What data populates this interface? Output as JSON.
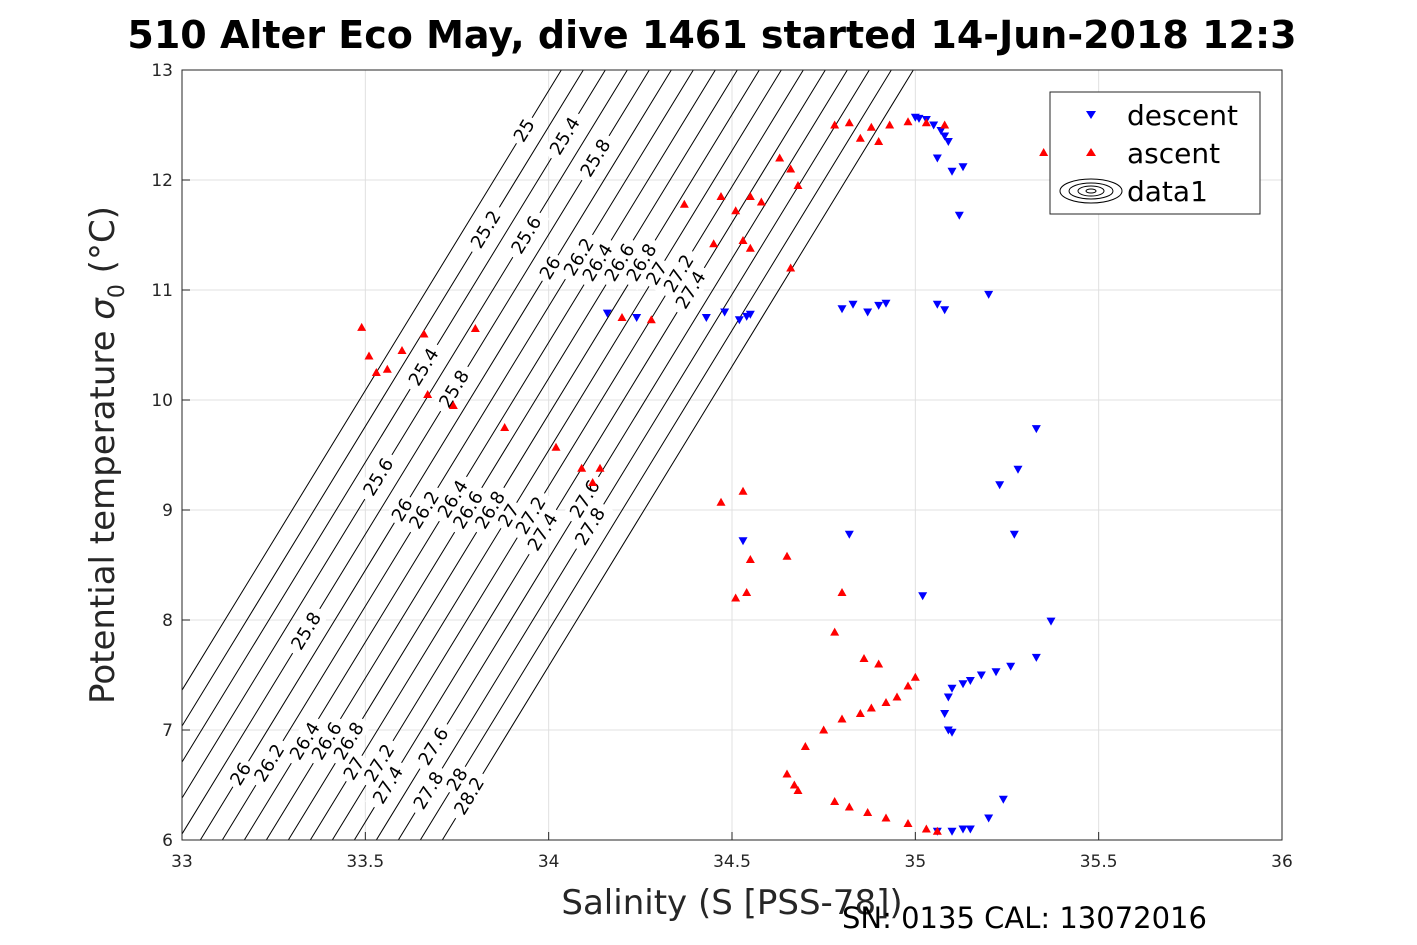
{
  "chart_data": {
    "type": "scatter",
    "title": "510 Alter Eco May, dive 1461 started 14-Jun-2018 12:3",
    "xlabel": "Salinity (S [PSS-78])",
    "ylabel_main": "Potential temperature ",
    "ylabel_sigma": "σ",
    "ylabel_sub": "0",
    "ylabel_unit": " (°C)",
    "footer": "SN: 0135  CAL: 13072016",
    "xlim": [
      33,
      36
    ],
    "ylim": [
      6,
      13
    ],
    "xticks": [
      "33",
      "33.5",
      "34",
      "34.5",
      "35",
      "35.5",
      "36"
    ],
    "yticks": [
      "6",
      "7",
      "8",
      "9",
      "10",
      "11",
      "12",
      "13"
    ],
    "grid": true,
    "legend_position": "top-right",
    "legend": [
      "descent",
      "ascent",
      "data1"
    ],
    "colors": {
      "descent": "#0000ff",
      "ascent": "#ff0000",
      "contour": "#000000",
      "grid": "#e0e0e0"
    },
    "density_contours": {
      "levels": [
        25,
        25.2,
        25.4,
        25.6,
        25.8,
        26,
        26.2,
        26.4,
        26.6,
        26.8,
        27,
        27.2,
        27.4,
        27.6,
        27.8,
        28,
        28.2
      ],
      "labels": [
        {
          "text": "25",
          "level": 25,
          "y": 12.45
        },
        {
          "text": "25.2",
          "level": 25.2,
          "y": 11.55
        },
        {
          "text": "25.4",
          "level": 25.4,
          "y": 12.4
        },
        {
          "text": "25.4",
          "level": 25.4,
          "y": 10.3
        },
        {
          "text": "25.6",
          "level": 25.6,
          "y": 11.5
        },
        {
          "text": "25.6",
          "level": 25.6,
          "y": 9.3
        },
        {
          "text": "25.8",
          "level": 25.8,
          "y": 12.2
        },
        {
          "text": "25.8",
          "level": 25.8,
          "y": 10.1
        },
        {
          "text": "25.8",
          "level": 25.8,
          "y": 7.9
        },
        {
          "text": "26",
          "level": 26,
          "y": 11.2
        },
        {
          "text": "26",
          "level": 26,
          "y": 9.0
        },
        {
          "text": "26",
          "level": 26,
          "y": 6.6
        },
        {
          "text": "26.2",
          "level": 26.2,
          "y": 11.3
        },
        {
          "text": "26.2",
          "level": 26.2,
          "y": 9.0
        },
        {
          "text": "26.2",
          "level": 26.2,
          "y": 6.7
        },
        {
          "text": "26.4",
          "level": 26.4,
          "y": 11.25
        },
        {
          "text": "26.4",
          "level": 26.4,
          "y": 9.1
        },
        {
          "text": "26.4",
          "level": 26.4,
          "y": 6.9
        },
        {
          "text": "26.6",
          "level": 26.6,
          "y": 11.25
        },
        {
          "text": "26.6",
          "level": 26.6,
          "y": 9.0
        },
        {
          "text": "26.6",
          "level": 26.6,
          "y": 6.9
        },
        {
          "text": "26.8",
          "level": 26.8,
          "y": 11.25
        },
        {
          "text": "26.8",
          "level": 26.8,
          "y": 9.0
        },
        {
          "text": "26.8",
          "level": 26.8,
          "y": 6.9
        },
        {
          "text": "27",
          "level": 27,
          "y": 11.15
        },
        {
          "text": "27",
          "level": 27,
          "y": 8.95
        },
        {
          "text": "27",
          "level": 27,
          "y": 6.65
        },
        {
          "text": "27.2",
          "level": 27.2,
          "y": 11.15
        },
        {
          "text": "27.2",
          "level": 27.2,
          "y": 8.95
        },
        {
          "text": "27.2",
          "level": 27.2,
          "y": 6.7
        },
        {
          "text": "27.4",
          "level": 27.4,
          "y": 11.0
        },
        {
          "text": "27.4",
          "level": 27.4,
          "y": 8.8
        },
        {
          "text": "27.4",
          "level": 27.4,
          "y": 6.5
        },
        {
          "text": "27.6",
          "level": 27.6,
          "y": 9.1
        },
        {
          "text": "27.6",
          "level": 27.6,
          "y": 6.85
        },
        {
          "text": "27.8",
          "level": 27.8,
          "y": 8.85
        },
        {
          "text": "27.8",
          "level": 27.8,
          "y": 6.45
        },
        {
          "text": "28",
          "level": 28,
          "y": 6.55
        },
        {
          "text": "28.2",
          "level": 28.2,
          "y": 6.4
        }
      ]
    },
    "series": [
      {
        "name": "descent",
        "marker": "down-triangle",
        "x": [
          35.0,
          35.01,
          35.03,
          35.05,
          35.07,
          35.08,
          35.09,
          35.06,
          35.1,
          35.13,
          35.12,
          34.16,
          34.24,
          34.43,
          34.48,
          34.52,
          34.54,
          34.55,
          34.8,
          34.83,
          34.87,
          34.9,
          34.92,
          35.06,
          35.08,
          35.2,
          34.53,
          34.82,
          35.02,
          35.33,
          35.28,
          35.23,
          35.27,
          35.37,
          35.33,
          35.26,
          35.22,
          35.18,
          35.15,
          35.13,
          35.1,
          35.09,
          35.08,
          35.09,
          35.1,
          35.13,
          35.24,
          35.2,
          35.15,
          35.1,
          35.06
        ],
        "y": [
          12.57,
          12.56,
          12.55,
          12.5,
          12.45,
          12.4,
          12.35,
          12.2,
          12.08,
          12.12,
          11.68,
          10.79,
          10.75,
          10.75,
          10.8,
          10.73,
          10.76,
          10.78,
          10.83,
          10.87,
          10.8,
          10.86,
          10.88,
          10.87,
          10.82,
          10.96,
          8.72,
          8.78,
          8.22,
          9.74,
          9.37,
          9.23,
          8.78,
          7.99,
          7.66,
          7.58,
          7.53,
          7.5,
          7.45,
          7.42,
          7.38,
          7.3,
          7.15,
          7.0,
          6.98,
          6.1,
          6.37,
          6.2,
          6.1,
          6.08,
          6.08
        ]
      },
      {
        "name": "ascent",
        "marker": "up-triangle",
        "x": [
          34.78,
          34.82,
          34.88,
          34.93,
          34.98,
          35.03,
          35.08,
          34.85,
          34.9,
          35.35,
          34.63,
          34.66,
          34.68,
          34.58,
          34.55,
          34.47,
          34.51,
          34.37,
          34.45,
          34.53,
          34.55,
          34.66,
          34.2,
          34.28,
          33.49,
          33.51,
          33.53,
          33.56,
          33.6,
          33.66,
          33.8,
          33.67,
          33.74,
          33.88,
          34.02,
          34.09,
          34.14,
          34.12,
          34.47,
          34.53,
          34.55,
          34.65,
          34.51,
          34.54,
          34.8,
          34.78,
          34.86,
          34.9,
          35.0,
          34.98,
          34.95,
          34.92,
          34.88,
          34.85,
          34.8,
          34.75,
          34.7,
          34.65,
          34.67,
          34.68,
          34.78,
          34.82,
          34.87,
          34.92,
          34.98,
          35.03,
          35.06
        ],
        "y": [
          12.5,
          12.52,
          12.48,
          12.5,
          12.53,
          12.52,
          12.5,
          12.38,
          12.35,
          12.25,
          12.2,
          12.1,
          11.95,
          11.8,
          11.85,
          11.85,
          11.72,
          11.78,
          11.42,
          11.45,
          11.38,
          11.2,
          10.75,
          10.73,
          10.66,
          10.4,
          10.25,
          10.28,
          10.45,
          10.6,
          10.65,
          10.05,
          9.95,
          9.75,
          9.57,
          9.38,
          9.38,
          9.25,
          9.07,
          9.17,
          8.55,
          8.58,
          8.2,
          8.25,
          8.25,
          7.89,
          7.65,
          7.6,
          7.48,
          7.4,
          7.3,
          7.25,
          7.2,
          7.15,
          7.1,
          7.0,
          6.85,
          6.6,
          6.5,
          6.45,
          6.35,
          6.3,
          6.25,
          6.2,
          6.15,
          6.1,
          6.08
        ]
      }
    ]
  }
}
